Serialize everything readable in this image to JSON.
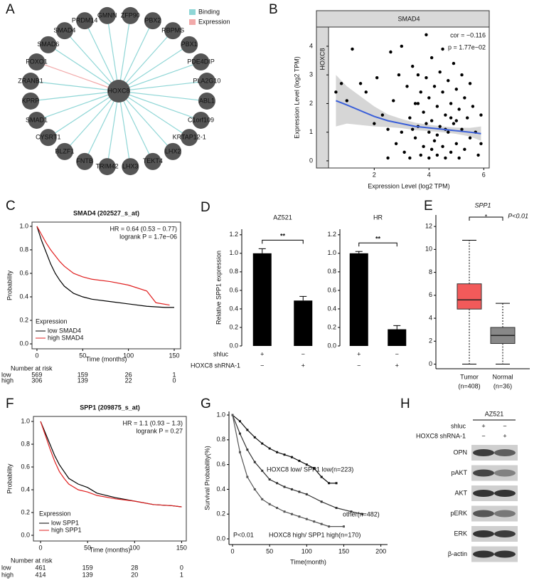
{
  "network": {
    "panel": "A",
    "center": "HOXC8",
    "legend": [
      {
        "name": "Binding",
        "color": "#8fd6d6"
      },
      {
        "name": "Expression",
        "color": "#f2aaaa"
      }
    ],
    "nodes": [
      {
        "label": "GMNN",
        "edge": 0
      },
      {
        "label": "ZFP90",
        "edge": 0
      },
      {
        "label": "PBX2",
        "edge": 0
      },
      {
        "label": "RBPMS",
        "edge": 0
      },
      {
        "label": "PBX1",
        "edge": 0
      },
      {
        "label": "PDE4DIP",
        "edge": 0
      },
      {
        "label": "PLA2G10",
        "edge": 0
      },
      {
        "label": "ABL1",
        "edge": 0
      },
      {
        "label": "C1orf109",
        "edge": 0
      },
      {
        "label": "KRTAP12-1",
        "edge": 0
      },
      {
        "label": "LHX2",
        "edge": 0
      },
      {
        "label": "TEKT4",
        "edge": 0
      },
      {
        "label": "LHX3",
        "edge": 0
      },
      {
        "label": "TRIM42",
        "edge": 0
      },
      {
        "label": "FNTB",
        "edge": 0
      },
      {
        "label": "BLZF1",
        "edge": 0
      },
      {
        "label": "CYSRT1",
        "edge": 0
      },
      {
        "label": "SMAD1",
        "edge": 0
      },
      {
        "label": "KPRP",
        "edge": 0
      },
      {
        "label": "ZRANB1",
        "edge": 0
      },
      {
        "label": "FOXO1",
        "edge": 1
      },
      {
        "label": "SMAD6",
        "edge": 0
      },
      {
        "label": "SMAD4",
        "edge": 0
      },
      {
        "label": "PRDM14",
        "edge": 0
      }
    ]
  },
  "chart_data": [
    {
      "type": "scatter",
      "panel": "B",
      "strip_top": "SMAD4",
      "strip_side": "HOXC8",
      "x_label": "Expression Level (log2 TPM)",
      "y_label": "Expression Level (log2 TPM)",
      "annotations": [
        "cor = −0.116",
        "p = 1.77e−02"
      ],
      "annotation_color": "#e02020",
      "color": "#000000",
      "xlim": [
        0.33,
        6.2
      ],
      "ylim": [
        -0.25,
        4.67
      ],
      "xticks": [
        2,
        4,
        6
      ],
      "yticks": [
        0,
        1,
        2,
        3,
        4
      ],
      "x": [
        0.6,
        0.8,
        1.2,
        1.0,
        1.5,
        1.7,
        2.0,
        2.1,
        2.3,
        2.5,
        2.5,
        2.6,
        2.7,
        2.8,
        2.9,
        3.0,
        3.0,
        3.1,
        3.2,
        3.3,
        3.3,
        3.4,
        3.5,
        3.5,
        3.6,
        3.6,
        3.7,
        3.7,
        3.8,
        3.8,
        3.9,
        3.9,
        4.0,
        4.0,
        4.0,
        4.1,
        4.1,
        4.2,
        4.2,
        4.3,
        4.3,
        4.4,
        4.4,
        4.5,
        4.5,
        4.5,
        4.6,
        4.6,
        4.7,
        4.7,
        4.8,
        4.8,
        4.9,
        4.9,
        5.0,
        5.0,
        5.1,
        5.1,
        5.2,
        5.2,
        5.3,
        5.3,
        5.4,
        5.5,
        5.5,
        5.6,
        5.7,
        5.8,
        5.9,
        5.9,
        3.4,
        3.9,
        4.3,
        4.6,
        5.0,
        4.1,
        3.6,
        4.8
      ],
      "values": [
        2.4,
        2.7,
        3.9,
        2.1,
        2.7,
        2.4,
        1.3,
        2.9,
        1.6,
        0.1,
        1.1,
        3.8,
        2.1,
        0.6,
        3.0,
        1.0,
        4.0,
        0.3,
        2.6,
        1.5,
        0.1,
        3.3,
        2.0,
        0.8,
        1.2,
        3.0,
        0.2,
        2.4,
        1.7,
        0.5,
        4.4,
        2.9,
        1.0,
        0.1,
        2.2,
        3.6,
        1.4,
        0.7,
        2.6,
        1.9,
        0.2,
        3.1,
        1.2,
        0.5,
        2.4,
        3.9,
        1.6,
        0.1,
        2.8,
        1.0,
        0.3,
        2.0,
        3.4,
        1.3,
        0.6,
        2.5,
        1.8,
        0.1,
        3.0,
        1.1,
        0.4,
        2.2,
        1.5,
        0.8,
        2.7,
        1.9,
        1.0,
        0.2,
        1.6,
        0.6,
        1.1,
        1.3,
        0.9,
        1.1,
        1.4,
        0.4,
        2.0,
        1.5
      ],
      "fit": {
        "color": "#3a5fd9",
        "band_color": "#bbbbbb",
        "x": [
          0.6,
          1,
          1.5,
          2,
          2.5,
          3,
          3.5,
          4,
          4.5,
          5,
          5.5,
          5.9
        ],
        "values": [
          2.1,
          1.95,
          1.75,
          1.55,
          1.4,
          1.3,
          1.2,
          1.15,
          1.1,
          1.05,
          1.0,
          0.95
        ],
        "ci_upper": [
          3.0,
          2.6,
          2.25,
          1.9,
          1.62,
          1.46,
          1.33,
          1.26,
          1.2,
          1.16,
          1.15,
          1.2
        ],
        "ci_lower": [
          1.2,
          1.3,
          1.25,
          1.2,
          1.18,
          1.14,
          1.07,
          1.04,
          1.0,
          0.94,
          0.85,
          0.7
        ]
      }
    },
    {
      "type": "line",
      "panel": "C",
      "title": "SMAD4 (202527_s_at)",
      "x_label": "Time (months)",
      "y_label": "Probability",
      "annotations": [
        "HR = 0.64 (0.53 − 0.77)",
        "logrank P = 1.7e−06"
      ],
      "legend_title": "Expression",
      "xlim": [
        -5.4,
        157
      ],
      "ylim": [
        -0.042,
        1.036
      ],
      "xticks": [
        0,
        50,
        100,
        150
      ],
      "yticks": [
        {
          "value": 0,
          "label": "0.0"
        },
        {
          "value": 0.2,
          "label": "0.2"
        },
        {
          "value": 0.4,
          "label": "0.4"
        },
        {
          "value": 0.6,
          "label": "0.6"
        },
        {
          "value": 0.8,
          "label": "0.8"
        },
        {
          "value": 1,
          "label": "1.0"
        }
      ],
      "series": [
        {
          "name": "low SMAD4",
          "color": "#000000",
          "x": [
            0,
            5,
            10,
            15,
            20,
            25,
            30,
            40,
            50,
            60,
            80,
            100,
            120,
            140,
            150
          ],
          "values": [
            1,
            0.88,
            0.78,
            0.68,
            0.6,
            0.54,
            0.49,
            0.43,
            0.4,
            0.38,
            0.36,
            0.34,
            0.32,
            0.31,
            0.31
          ]
        },
        {
          "name": "high SMAD4",
          "color": "#e02020",
          "x": [
            0,
            5,
            10,
            15,
            20,
            25,
            30,
            40,
            50,
            60,
            80,
            100,
            120,
            130,
            145
          ],
          "values": [
            1,
            0.93,
            0.86,
            0.8,
            0.75,
            0.7,
            0.66,
            0.6,
            0.57,
            0.55,
            0.53,
            0.5,
            0.45,
            0.35,
            0.33
          ]
        }
      ],
      "risk": {
        "title": "Number at risk",
        "rows": [
          {
            "label": "low",
            "color": "#000000",
            "counts": [
              569,
              159,
              26,
              1
            ]
          },
          {
            "label": "high",
            "color": "#e02020",
            "counts": [
              306,
              139,
              22,
              0
            ]
          }
        ]
      }
    },
    {
      "type": "bar",
      "panel": "D",
      "y_label": "Relative SPP1 expression",
      "color": "#000000",
      "ylim": [
        0,
        1.26
      ],
      "yticks": [
        {
          "value": 0,
          "label": "0.0"
        },
        {
          "value": 0.2,
          "label": "0.2"
        },
        {
          "value": 0.4,
          "label": "0.4"
        },
        {
          "value": 0.6,
          "label": "0.6"
        },
        {
          "value": 0.8,
          "label": "0.8"
        },
        {
          "value": 1,
          "label": "1.0"
        },
        {
          "value": 1.2,
          "label": "1.2"
        }
      ],
      "conditions": [
        {
          "name": "shluc",
          "marks": [
            "+",
            "−"
          ]
        },
        {
          "name": "HOXC8 shRNA-1",
          "marks": [
            "−",
            "+"
          ]
        }
      ],
      "subplots": [
        {
          "title": "AZ521",
          "values": [
            1.0,
            0.49
          ],
          "errors": [
            0.05,
            0.045
          ],
          "significance": "**"
        },
        {
          "title": "HR",
          "values": [
            1.0,
            0.18
          ],
          "errors": [
            0.02,
            0.04
          ],
          "significance": "**"
        }
      ]
    },
    {
      "type": "box",
      "panel": "E",
      "title": "SPP1",
      "significance": "*",
      "significance_color": "#e02020",
      "annotation": "P<0.01",
      "categories": [
        "Tumor",
        "Normal"
      ],
      "n_labels": [
        "(n=408)",
        "(n=36)"
      ],
      "ylim": [
        -0.4,
        13
      ],
      "yticks": [
        0,
        2,
        4,
        6,
        8,
        10,
        12
      ],
      "boxes": [
        {
          "min": 0,
          "q1": 4.8,
          "median": 5.6,
          "q3": 7.0,
          "max": 10.8,
          "color": "#f25a5a"
        },
        {
          "min": 0,
          "q1": 1.8,
          "median": 2.5,
          "q3": 3.2,
          "max": 5.3,
          "color": "#888888"
        }
      ]
    },
    {
      "type": "line",
      "panel": "F",
      "title": "SPP1 (209875_s_at)",
      "x_label": "Time (months)",
      "y_label": "Probability",
      "annotations": [
        "HR = 1.1 (0.93 − 1.3)",
        "logrank P = 0.27"
      ],
      "legend_title": "Expression",
      "xlim": [
        -7.6,
        155
      ],
      "ylim": [
        -0.05,
        1.044
      ],
      "xticks": [
        0,
        50,
        100,
        150
      ],
      "yticks": [
        {
          "value": 0,
          "label": "0.0"
        },
        {
          "value": 0.2,
          "label": "0.2"
        },
        {
          "value": 0.4,
          "label": "0.4"
        },
        {
          "value": 0.6,
          "label": "0.6"
        },
        {
          "value": 0.8,
          "label": "0.8"
        },
        {
          "value": 1,
          "label": "1.0"
        }
      ],
      "series": [
        {
          "name": "low SPP1",
          "color": "#000000",
          "x": [
            0,
            5,
            10,
            15,
            20,
            25,
            30,
            40,
            50,
            60,
            80,
            100,
            120,
            140,
            150
          ],
          "values": [
            1,
            0.9,
            0.8,
            0.7,
            0.62,
            0.56,
            0.5,
            0.45,
            0.42,
            0.37,
            0.33,
            0.3,
            0.27,
            0.26,
            0.25
          ]
        },
        {
          "name": "high SPP1",
          "color": "#e02020",
          "x": [
            0,
            5,
            10,
            15,
            20,
            25,
            30,
            40,
            50,
            60,
            80,
            100,
            120,
            140,
            150
          ],
          "values": [
            1,
            0.88,
            0.76,
            0.65,
            0.56,
            0.5,
            0.45,
            0.4,
            0.38,
            0.35,
            0.32,
            0.3,
            0.27,
            0.26,
            0.25
          ]
        }
      ],
      "risk": {
        "title": "Number at risk",
        "rows": [
          {
            "label": "low",
            "color": "#000000",
            "counts": [
              461,
              159,
              28,
              0
            ]
          },
          {
            "label": "high",
            "color": "#e02020",
            "counts": [
              414,
              139,
              20,
              1
            ]
          }
        ]
      }
    },
    {
      "type": "line",
      "panel": "G",
      "x_label": "Time(month)",
      "y_label": "Survival Probability(%)",
      "annotations": [
        "HOXC8 low/ SPP1 low(n=223)",
        "other(n=482)",
        "HOXC8 high/ SPP1 high(n=170)",
        "P<0.01"
      ],
      "xlim": [
        -4.8,
        209
      ],
      "ylim": [
        -0.046,
        1.029
      ],
      "xticks": [
        0,
        50,
        100,
        150,
        200
      ],
      "yticks": [
        {
          "value": 0,
          "label": "0.0"
        },
        {
          "value": 0.2,
          "label": "0.2"
        },
        {
          "value": 0.4,
          "label": "0.4"
        },
        {
          "value": 0.6,
          "label": "0.6"
        },
        {
          "value": 0.8,
          "label": "0.8"
        },
        {
          "value": 1,
          "label": "1.0"
        }
      ],
      "series": [
        {
          "color": "#111111",
          "x": [
            0,
            10,
            20,
            30,
            40,
            50,
            60,
            70,
            80,
            90,
            100,
            110,
            120,
            130,
            140
          ],
          "values": [
            1,
            0.95,
            0.88,
            0.82,
            0.77,
            0.73,
            0.7,
            0.68,
            0.66,
            0.63,
            0.6,
            0.57,
            0.5,
            0.45,
            0.45
          ]
        },
        {
          "color": "#333333",
          "x": [
            0,
            10,
            20,
            30,
            40,
            50,
            60,
            70,
            80,
            90,
            100,
            120,
            140,
            160,
            175
          ],
          "values": [
            1,
            0.85,
            0.72,
            0.62,
            0.55,
            0.48,
            0.45,
            0.42,
            0.4,
            0.38,
            0.36,
            0.3,
            0.25,
            0.22,
            0.2
          ]
        },
        {
          "color": "#555555",
          "x": [
            0,
            10,
            20,
            30,
            40,
            50,
            60,
            70,
            80,
            90,
            100,
            110,
            120,
            130,
            150
          ],
          "values": [
            1,
            0.7,
            0.5,
            0.4,
            0.32,
            0.28,
            0.25,
            0.22,
            0.2,
            0.18,
            0.16,
            0.14,
            0.12,
            0.1,
            0.1
          ]
        }
      ]
    }
  ],
  "blot": {
    "panel": "H",
    "cell_line": "AZ521",
    "conditions": [
      {
        "name": "shluc",
        "marks": [
          "+",
          "−"
        ]
      },
      {
        "name": "HOXC8 shRNA-1",
        "marks": [
          "−",
          "+"
        ]
      }
    ],
    "rows": [
      "OPN",
      "pAKT",
      "AKT",
      "pERK",
      "ERK",
      "β-actin"
    ]
  }
}
